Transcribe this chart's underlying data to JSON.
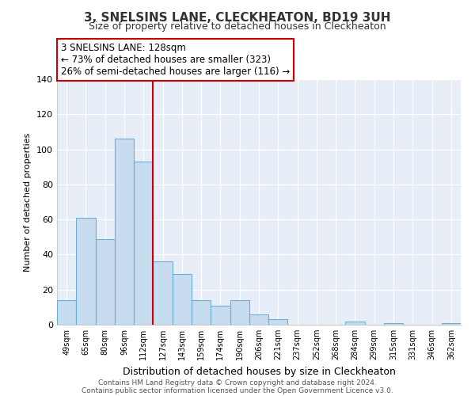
{
  "title": "3, SNELSINS LANE, CLECKHEATON, BD19 3UH",
  "subtitle": "Size of property relative to detached houses in Cleckheaton",
  "xlabel": "Distribution of detached houses by size in Cleckheaton",
  "ylabel": "Number of detached properties",
  "categories": [
    "49sqm",
    "65sqm",
    "80sqm",
    "96sqm",
    "112sqm",
    "127sqm",
    "143sqm",
    "159sqm",
    "174sqm",
    "190sqm",
    "206sqm",
    "221sqm",
    "237sqm",
    "252sqm",
    "268sqm",
    "284sqm",
    "299sqm",
    "315sqm",
    "331sqm",
    "346sqm",
    "362sqm"
  ],
  "values": [
    14,
    61,
    49,
    106,
    93,
    36,
    29,
    14,
    11,
    14,
    6,
    3,
    0,
    0,
    0,
    2,
    0,
    1,
    0,
    0,
    1
  ],
  "bar_color": "#c8dcef",
  "bar_edge_color": "#6baed6",
  "property_label": "3 SNELSINS LANE: 128sqm",
  "annotation_line1": "← 73% of detached houses are smaller (323)",
  "annotation_line2": "26% of semi-detached houses are larger (116) →",
  "vline_color": "#cc0000",
  "vline_x_index": 5,
  "ylim": [
    0,
    140
  ],
  "yticks": [
    0,
    20,
    40,
    60,
    80,
    100,
    120,
    140
  ],
  "annotation_box_facecolor": "#ffffff",
  "annotation_box_edge": "#cc0000",
  "footer_line1": "Contains HM Land Registry data © Crown copyright and database right 2024.",
  "footer_line2": "Contains public sector information licensed under the Open Government Licence v3.0.",
  "bg_color": "#e8eef8"
}
